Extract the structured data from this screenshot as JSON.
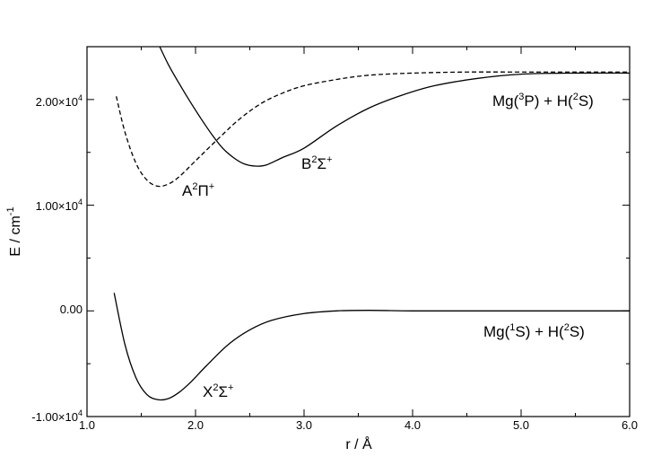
{
  "chart_data": {
    "type": "line",
    "xlabel": "r / Å",
    "ylabel": "E / cm-1",
    "xlim": [
      1.0,
      6.0
    ],
    "ylim": [
      -10000,
      25000
    ],
    "x_ticks": [
      {
        "value": 1.0,
        "label": "1.0"
      },
      {
        "value": 2.0,
        "label": "2.0"
      },
      {
        "value": 3.0,
        "label": "3.0"
      },
      {
        "value": 4.0,
        "label": "4.0"
      },
      {
        "value": 5.0,
        "label": "5.0"
      },
      {
        "value": 6.0,
        "label": "6.0"
      }
    ],
    "x_minor_ticks": [
      1.5,
      2.5,
      3.5,
      4.5,
      5.5
    ],
    "y_ticks": [
      {
        "value": -10000,
        "label": "-1.00×10^4"
      },
      {
        "value": 0,
        "label": "0.00"
      },
      {
        "value": 10000,
        "label": "1.00×10^4"
      },
      {
        "value": 20000,
        "label": "2.00×10^4"
      }
    ],
    "y_minor_ticks": [
      -5000,
      5000,
      15000
    ],
    "grid": false,
    "series": [
      {
        "name": "X2Σ+",
        "style": "solid",
        "x": [
          1.25,
          1.35,
          1.45,
          1.55,
          1.65,
          1.75,
          1.85,
          1.95,
          2.1,
          2.3,
          2.5,
          2.7,
          3.0,
          3.3,
          3.6,
          4.0,
          4.5,
          5.0,
          5.5,
          6.0
        ],
        "y": [
          1700,
          -3200,
          -6300,
          -7900,
          -8400,
          -8300,
          -7700,
          -6800,
          -5200,
          -3200,
          -1800,
          -900,
          -250,
          0,
          50,
          0,
          0,
          0,
          0,
          0
        ]
      },
      {
        "name": "A2Π+",
        "style": "dashed",
        "x": [
          1.27,
          1.35,
          1.45,
          1.55,
          1.65,
          1.75,
          1.85,
          2.0,
          2.2,
          2.4,
          2.6,
          2.8,
          3.0,
          3.3,
          3.6,
          4.0,
          4.5,
          5.0,
          5.5,
          6.0
        ],
        "y": [
          20300,
          16900,
          14000,
          12400,
          11800,
          12000,
          12700,
          14200,
          16200,
          18100,
          19600,
          20600,
          21300,
          21900,
          22300,
          22500,
          22600,
          22600,
          22600,
          22600
        ]
      },
      {
        "name": "B2Σ+",
        "style": "solid",
        "x": [
          1.67,
          1.75,
          1.85,
          1.95,
          2.05,
          2.15,
          2.25,
          2.35,
          2.45,
          2.55,
          2.65,
          2.8,
          3.0,
          3.3,
          3.6,
          3.9,
          4.2,
          4.6,
          5.0,
          5.5,
          6.0
        ],
        "y": [
          25000,
          23300,
          21500,
          19800,
          18200,
          16700,
          15400,
          14500,
          13900,
          13700,
          13800,
          14500,
          15400,
          17500,
          19200,
          20400,
          21300,
          22000,
          22400,
          22500,
          22500
        ]
      }
    ],
    "annotations": {
      "x_state": {
        "base": "X",
        "sup1": "2",
        "sym": "Σ",
        "sup2": "+"
      },
      "a_state": {
        "base": "A",
        "sup1": "2",
        "sym": "Π",
        "sup2": "+"
      },
      "b_state": {
        "base": "B",
        "sup1": "2",
        "sym": "Σ",
        "sup2": "+"
      },
      "ground_asymptote": {
        "p1": "Mg(",
        "s1": "1",
        "p2": "S) + H(",
        "s2": "2",
        "p3": "S)"
      },
      "excited_asymptote": {
        "p1": "Mg(",
        "s1": "3",
        "p2": "P) + H(",
        "s2": "2",
        "p3": "S)"
      }
    }
  },
  "labels": {
    "x_axis": "r / Å",
    "y_axis_main": "E / cm",
    "y_axis_sup": "-1",
    "sci_mantissa_neg1": "-1.00×10",
    "sci_mantissa_1": "1.00×10",
    "sci_mantissa_2": "2.00×10",
    "sci_exp": "4",
    "zero": "0.00",
    "x1": "1.0",
    "x2": "2.0",
    "x3": "3.0",
    "x4": "4.0",
    "x5": "5.0",
    "x6": "6.0"
  }
}
